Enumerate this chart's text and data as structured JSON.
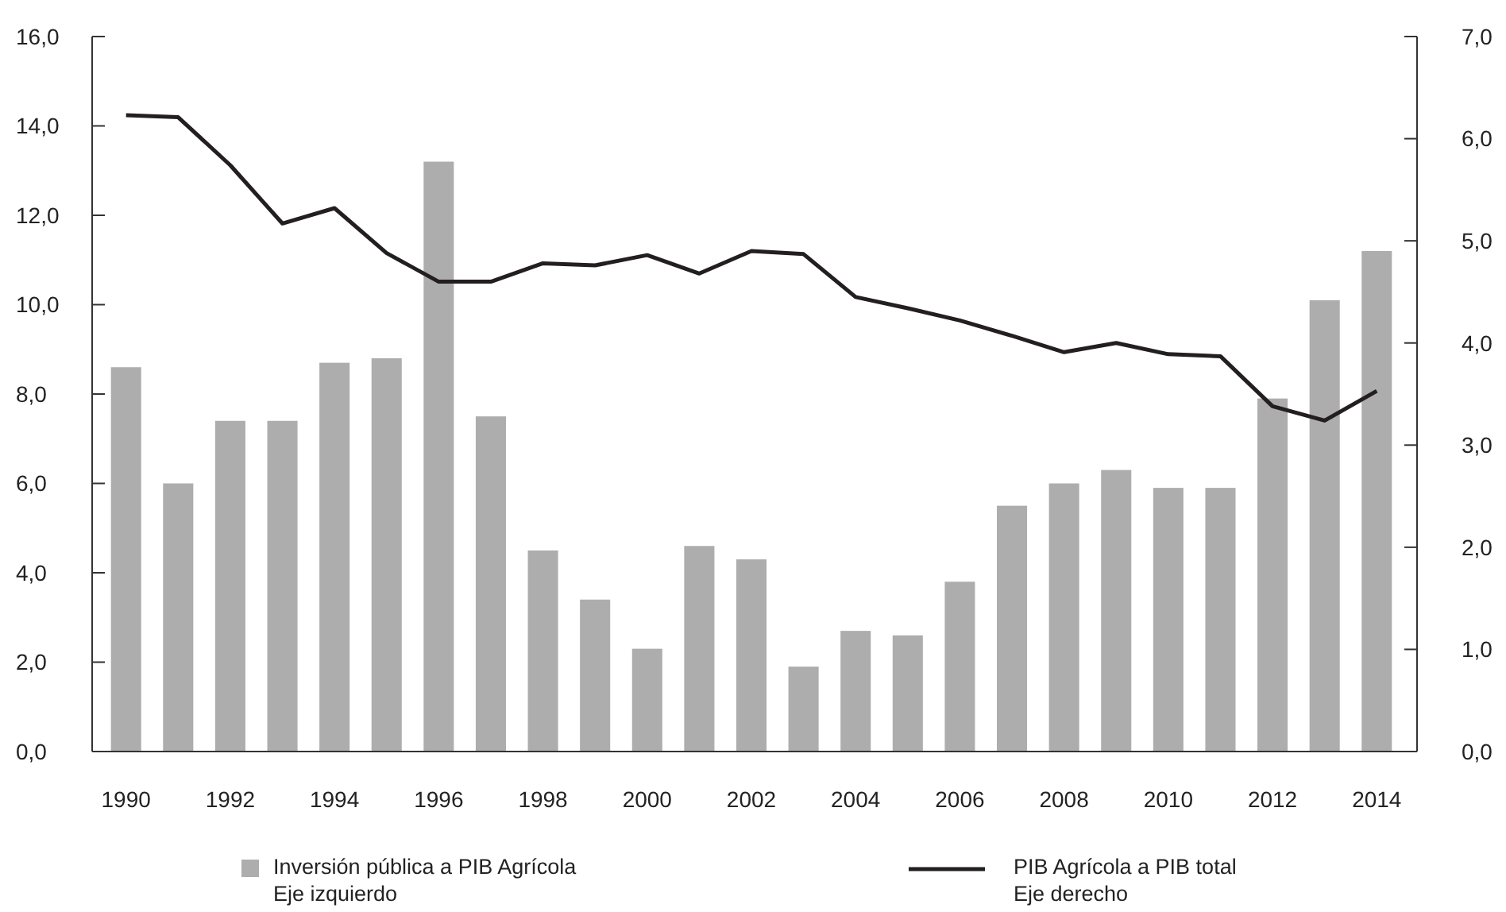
{
  "chart_data": {
    "type": "bar",
    "categories": [
      "1990",
      null,
      "1992",
      null,
      "1994",
      null,
      "1996",
      null,
      "1998",
      null,
      "2000",
      null,
      "2002",
      null,
      "2004",
      null,
      "2006",
      null,
      "2008",
      null,
      "2010",
      null,
      "2012",
      null,
      "2014"
    ],
    "series": [
      {
        "name": "Inversión pública a PIB Agrícola\nEje izquierdo",
        "color": "#adadad",
        "values": [
          8.6,
          6.0,
          7.4,
          7.4,
          8.7,
          8.8,
          13.2,
          7.5,
          4.5,
          3.4,
          2.3,
          4.6,
          4.3,
          1.9,
          2.7,
          2.6,
          3.8,
          5.5,
          6.0,
          6.3,
          5.9,
          5.9,
          7.9,
          10.1,
          11.2
        ]
      },
      {
        "name": "PIB Agrícola a PIB total\nEje derecho",
        "type": "line",
        "axis": "y2",
        "color": "#231f20",
        "values": [
          6.23,
          6.21,
          5.74,
          5.17,
          5.32,
          4.88,
          4.6,
          4.6,
          4.78,
          4.76,
          4.86,
          4.68,
          4.9,
          4.87,
          4.45,
          4.34,
          4.22,
          4.07,
          3.91,
          4.0,
          3.89,
          3.87,
          3.38,
          3.24,
          3.53
        ]
      }
    ],
    "ylim": [
      0,
      16
    ],
    "yticks": [
      {
        "value": 0,
        "label": "0,0"
      },
      {
        "value": 2,
        "label": "2,0"
      },
      {
        "value": 4,
        "label": "4,0"
      },
      {
        "value": 6,
        "label": "6,0"
      },
      {
        "value": 8,
        "label": "8,0"
      },
      {
        "value": 10,
        "label": "10,0"
      },
      {
        "value": 12,
        "label": "12,0"
      },
      {
        "value": 14,
        "label": "14,0"
      },
      {
        "value": 16,
        "label": "16,0"
      }
    ],
    "y2lim": [
      0,
      7
    ],
    "y2ticks": [
      {
        "value": 0,
        "label": "0,0"
      },
      {
        "value": 1,
        "label": "1,0"
      },
      {
        "value": 2,
        "label": "2,0"
      },
      {
        "value": 3,
        "label": "3,0"
      },
      {
        "value": 4,
        "label": "4,0"
      },
      {
        "value": 5,
        "label": "5,0"
      },
      {
        "value": 6,
        "label": "6,0"
      },
      {
        "value": 7,
        "label": "7,0"
      }
    ],
    "legend": "bottom",
    "grid": false
  }
}
